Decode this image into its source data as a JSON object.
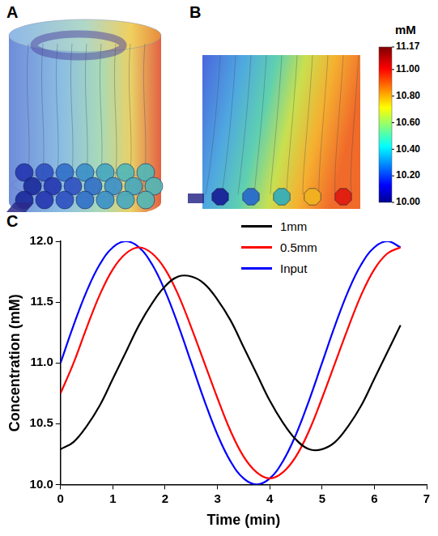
{
  "panels": [
    {
      "label": "A"
    },
    {
      "label": "B"
    }
  ],
  "colorbar": {
    "title": "mM",
    "range": [
      10.0,
      11.17
    ],
    "ticks": [
      {
        "value": 10.0,
        "label": "10.00"
      },
      {
        "value": 10.2,
        "label": "10.20"
      },
      {
        "value": 10.4,
        "label": "10.40"
      },
      {
        "value": 10.6,
        "label": "10.60"
      },
      {
        "value": 10.8,
        "label": "10.80"
      },
      {
        "value": 11.0,
        "label": "11.00"
      },
      11.17
    ]
  },
  "chart_data": {
    "panel": "C",
    "type": "line",
    "x_label": "Time (min)",
    "y_label": "Concentration (mM)",
    "x": [
      0,
      0.25,
      0.5,
      0.75,
      1.0,
      1.25,
      1.5,
      1.75,
      2.0,
      2.25,
      2.5,
      2.75,
      3.0,
      3.25,
      3.5,
      3.75,
      4.0,
      4.25,
      4.5,
      4.75,
      5.0,
      5.25,
      5.5,
      5.75,
      6.0,
      6.25,
      6.5
    ],
    "series": [
      {
        "name": "1mm",
        "color": "#000000",
        "values": [
          10.29,
          10.35,
          10.48,
          10.65,
          10.87,
          11.09,
          11.31,
          11.49,
          11.63,
          11.71,
          11.71,
          11.65,
          11.52,
          11.35,
          11.13,
          10.91,
          10.69,
          10.51,
          10.37,
          10.29,
          10.29,
          10.35,
          10.48,
          10.65,
          10.87,
          11.09,
          11.31
        ]
      },
      {
        "name": "0.5mm",
        "color": "#ff0000",
        "values": [
          10.75,
          11.0,
          11.29,
          11.56,
          11.77,
          11.9,
          11.95,
          11.9,
          11.77,
          11.56,
          11.29,
          11.0,
          10.71,
          10.44,
          10.23,
          10.1,
          10.05,
          10.1,
          10.23,
          10.44,
          10.71,
          11.0,
          11.29,
          11.56,
          11.77,
          11.9,
          11.95
        ]
      },
      {
        "name": "Input",
        "color": "#0000ff",
        "values": [
          11.0,
          11.31,
          11.59,
          11.81,
          11.95,
          12.0,
          11.95,
          11.81,
          11.59,
          11.31,
          11.0,
          10.69,
          10.41,
          10.19,
          10.05,
          10.0,
          10.05,
          10.19,
          10.41,
          10.69,
          11.0,
          11.31,
          11.59,
          11.81,
          11.95,
          12.0,
          11.95
        ]
      }
    ],
    "xlim": [
      0,
      7
    ],
    "xticks": [
      0,
      1,
      2,
      3,
      4,
      5,
      6,
      7
    ],
    "ylim": [
      10.0,
      12.0
    ],
    "yticks": [
      {
        "value": 10.0,
        "label": "10.0"
      },
      {
        "value": 10.5,
        "label": "10.5"
      },
      {
        "value": 11.0,
        "label": "11.0"
      },
      {
        "value": 11.5,
        "label": "11.5"
      },
      {
        "value": 12.0,
        "label": "12.0"
      }
    ],
    "grid": false,
    "legend": "upper right"
  }
}
